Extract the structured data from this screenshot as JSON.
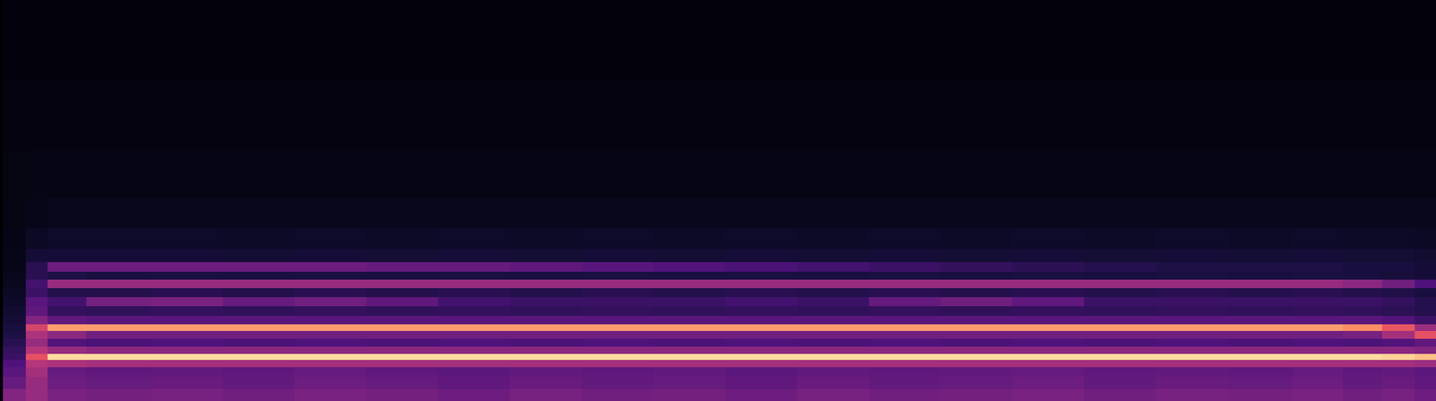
{
  "chart_data": {
    "type": "heatmap",
    "x": [
      1,
      2.6,
      4,
      8,
      13,
      18,
      23,
      28,
      33,
      38,
      43,
      48,
      53,
      58,
      63,
      68,
      73,
      78,
      83,
      88,
      92,
      95,
      97.5,
      99.5
    ],
    "y": [
      1.5,
      4.5,
      7.5,
      9.5,
      11,
      12.5,
      14.5,
      16.5,
      18.3,
      20,
      22.5,
      24.7,
      27,
      29.2,
      31.2,
      33.3,
      36,
      40,
      46,
      55,
      70,
      90
    ],
    "z": [
      [
        50,
        55,
        48,
        46,
        47,
        45,
        48,
        46,
        44,
        47,
        45,
        46,
        44,
        47,
        45,
        46,
        48,
        45,
        47,
        46,
        48,
        45,
        47,
        44
      ],
      [
        42,
        55,
        44,
        42,
        43,
        41,
        44,
        42,
        40,
        43,
        41,
        42,
        40,
        43,
        41,
        42,
        44,
        41,
        43,
        42,
        44,
        41,
        43,
        40
      ],
      [
        38,
        58,
        42,
        40,
        41,
        40,
        42,
        40,
        39,
        41,
        40,
        41,
        39,
        41,
        40,
        41,
        42,
        40,
        41,
        40,
        42,
        40,
        41,
        39
      ],
      [
        35,
        62,
        60,
        58,
        58,
        58,
        58,
        58,
        58,
        58,
        58,
        58,
        58,
        58,
        58,
        58,
        58,
        58,
        58,
        58,
        58,
        58,
        58,
        56
      ],
      [
        30,
        75,
        96,
        96,
        96,
        96,
        96,
        96,
        96,
        96,
        96,
        96,
        96,
        96,
        96,
        96,
        96,
        96,
        96,
        96,
        96,
        96,
        95,
        93
      ],
      [
        28,
        62,
        55,
        52,
        52,
        52,
        52,
        52,
        52,
        52,
        52,
        52,
        52,
        52,
        52,
        52,
        52,
        52,
        52,
        52,
        52,
        52,
        52,
        50
      ],
      [
        25,
        55,
        36,
        34,
        35,
        34,
        35,
        34,
        35,
        34,
        35,
        34,
        35,
        34,
        35,
        34,
        35,
        34,
        35,
        34,
        35,
        34,
        36,
        40
      ],
      [
        22,
        60,
        52,
        45,
        45,
        45,
        45,
        45,
        45,
        45,
        45,
        45,
        45,
        45,
        45,
        45,
        45,
        45,
        45,
        45,
        45,
        47,
        58,
        75
      ],
      [
        20,
        70,
        88,
        88,
        88,
        88,
        88,
        88,
        88,
        88,
        88,
        88,
        88,
        88,
        88,
        88,
        88,
        88,
        88,
        88,
        88,
        86,
        76,
        56
      ],
      [
        18,
        50,
        40,
        38,
        38,
        38,
        38,
        38,
        38,
        38,
        38,
        38,
        38,
        38,
        38,
        38,
        38,
        38,
        38,
        38,
        38,
        38,
        36,
        30
      ],
      [
        16,
        40,
        28,
        27,
        28,
        27,
        28,
        27,
        28,
        27,
        28,
        27,
        28,
        27,
        28,
        27,
        28,
        27,
        28,
        27,
        28,
        27,
        26,
        24
      ],
      [
        14,
        38,
        32,
        46,
        48,
        42,
        45,
        40,
        32,
        30,
        30,
        30,
        32,
        30,
        42,
        45,
        40,
        30,
        30,
        30,
        30,
        30,
        28,
        24
      ],
      [
        12,
        30,
        24,
        24,
        25,
        24,
        25,
        24,
        25,
        24,
        25,
        24,
        25,
        24,
        25,
        24,
        25,
        24,
        25,
        24,
        25,
        24,
        23,
        20
      ],
      [
        10,
        32,
        55,
        55,
        55,
        55,
        55,
        55,
        55,
        55,
        55,
        55,
        55,
        55,
        55,
        55,
        55,
        55,
        55,
        55,
        55,
        52,
        45,
        35
      ],
      [
        9,
        25,
        22,
        20,
        21,
        20,
        21,
        20,
        21,
        20,
        21,
        20,
        21,
        20,
        21,
        20,
        21,
        20,
        21,
        20,
        21,
        20,
        19,
        18
      ],
      [
        8,
        25,
        44,
        44,
        44,
        44,
        44,
        42,
        42,
        40,
        38,
        36,
        34,
        32,
        30,
        28,
        26,
        24,
        22,
        22,
        22,
        20,
        20,
        18
      ],
      [
        8,
        18,
        18,
        18,
        18,
        17,
        18,
        17,
        18,
        17,
        18,
        17,
        18,
        17,
        18,
        17,
        18,
        17,
        18,
        17,
        18,
        17,
        17,
        16
      ],
      [
        7,
        12,
        14,
        14,
        14,
        13,
        14,
        13,
        14,
        13,
        14,
        13,
        14,
        13,
        14,
        13,
        14,
        13,
        14,
        13,
        14,
        13,
        13,
        12
      ],
      [
        6,
        8,
        9,
        9,
        9,
        9,
        9,
        9,
        9,
        9,
        9,
        9,
        9,
        9,
        9,
        9,
        9,
        9,
        9,
        9,
        9,
        9,
        9,
        9
      ],
      [
        5,
        6,
        6,
        6,
        6,
        6,
        6,
        6,
        6,
        6,
        6,
        6,
        6,
        6,
        6,
        6,
        6,
        6,
        6,
        6,
        6,
        6,
        6,
        6
      ],
      [
        4,
        4,
        4,
        4,
        4,
        4,
        4,
        4,
        4,
        4,
        4,
        4,
        4,
        4,
        4,
        4,
        4,
        4,
        4,
        4,
        4,
        4,
        4,
        4
      ],
      [
        3,
        3,
        3,
        3,
        3,
        3,
        3,
        3,
        3,
        3,
        3,
        3,
        3,
        3,
        3,
        3,
        3,
        3,
        3,
        3,
        3,
        3,
        3,
        3
      ]
    ],
    "zlim": [
      0,
      100
    ],
    "xlim": [
      0,
      100
    ],
    "ylim": [
      0,
      100
    ],
    "tick_labels": false
  }
}
